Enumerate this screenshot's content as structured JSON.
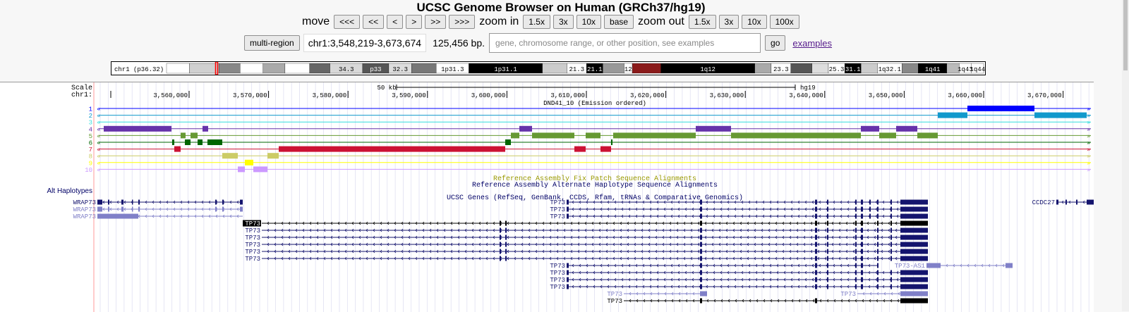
{
  "title": "UCSC Genome Browser on Human (GRCh37/hg19)",
  "nav": {
    "move_label": "move",
    "move_buttons": [
      "<<<",
      "<<",
      "<",
      ">",
      ">>",
      ">>>"
    ],
    "zoom_in_label": "zoom in",
    "zoom_in_buttons": [
      "1.5x",
      "3x",
      "10x",
      "base"
    ],
    "zoom_out_label": "zoom out",
    "zoom_out_buttons": [
      "1.5x",
      "3x",
      "10x",
      "100x"
    ]
  },
  "position_bar": {
    "multi_region_label": "multi-region",
    "position": "chr1:3,548,219-3,673,674",
    "size": "125,456 bp.",
    "search_placeholder": "gene, chromosome range, or other position, see examples",
    "go_label": "go",
    "examples_label": "examples"
  },
  "ideogram": {
    "label": "chr1 (p36.32)",
    "bands": [
      {
        "s": 0,
        "e": 0.028,
        "c": "#ffffff",
        "t": ""
      },
      {
        "s": 0.028,
        "e": 0.064,
        "c": "#d0d0d0",
        "t": ""
      },
      {
        "s": 0.064,
        "e": 0.09,
        "c": "#888888",
        "t": ""
      },
      {
        "s": 0.09,
        "e": 0.118,
        "c": "#ffffff",
        "t": ""
      },
      {
        "s": 0.118,
        "e": 0.145,
        "c": "#aaaaaa",
        "t": ""
      },
      {
        "s": 0.145,
        "e": 0.175,
        "c": "#ffffff",
        "t": ""
      },
      {
        "s": 0.175,
        "e": 0.2,
        "c": "#666666",
        "t": ""
      },
      {
        "s": 0.2,
        "e": 0.24,
        "c": "#d8d8d8",
        "t": "34.3"
      },
      {
        "s": 0.24,
        "e": 0.272,
        "c": "#555555",
        "t": "p33"
      },
      {
        "s": 0.272,
        "e": 0.3,
        "c": "#dddddd",
        "t": "32.3"
      },
      {
        "s": 0.3,
        "e": 0.33,
        "c": "#777777",
        "t": ""
      },
      {
        "s": 0.33,
        "e": 0.37,
        "c": "#ffffff",
        "t": "1p31.3"
      },
      {
        "s": 0.37,
        "e": 0.46,
        "c": "#000000",
        "t": "1p31.1"
      },
      {
        "s": 0.46,
        "e": 0.49,
        "c": "#cccccc",
        "t": ""
      },
      {
        "s": 0.49,
        "e": 0.514,
        "c": "#ffffff",
        "t": "21.3"
      },
      {
        "s": 0.514,
        "e": 0.534,
        "c": "#000000",
        "t": "21.1"
      },
      {
        "s": 0.534,
        "e": 0.56,
        "c": "#999999",
        "t": ""
      },
      {
        "s": 0.56,
        "e": 0.57,
        "c": "#ffffff",
        "t": "12"
      },
      {
        "s": 0.57,
        "e": 0.605,
        "c": "#8a1a1a",
        "t": ""
      },
      {
        "s": 0.605,
        "e": 0.72,
        "c": "#000000",
        "t": "1q12"
      },
      {
        "s": 0.72,
        "e": 0.74,
        "c": "#aaaaaa",
        "t": ""
      },
      {
        "s": 0.74,
        "e": 0.764,
        "c": "#ffffff",
        "t": "23.3"
      },
      {
        "s": 0.764,
        "e": 0.79,
        "c": "#555555",
        "t": ""
      },
      {
        "s": 0.79,
        "e": 0.81,
        "c": "#dddddd",
        "t": ""
      },
      {
        "s": 0.81,
        "e": 0.83,
        "c": "#ffffff",
        "t": "25.3"
      },
      {
        "s": 0.83,
        "e": 0.85,
        "c": "#000000",
        "t": "31.1"
      },
      {
        "s": 0.85,
        "e": 0.87,
        "c": "#cccccc",
        "t": ""
      },
      {
        "s": 0.87,
        "e": 0.9,
        "c": "#ffffff",
        "t": "1q32.1"
      },
      {
        "s": 0.9,
        "e": 0.92,
        "c": "#888888",
        "t": ""
      },
      {
        "s": 0.92,
        "e": 0.955,
        "c": "#000000",
        "t": "1q41"
      },
      {
        "s": 0.955,
        "e": 0.97,
        "c": "#bbbbbb",
        "t": ""
      },
      {
        "s": 0.97,
        "e": 0.985,
        "c": "#ffffff",
        "t": "1q43"
      },
      {
        "s": 0.985,
        "e": 1,
        "c": "#ffffff",
        "t": "1q44"
      }
    ]
  },
  "scale": {
    "scale_label": "Scale",
    "chr_label": "chr1:",
    "bar_label": "50 kb",
    "assembly": "hg19",
    "ticks": [
      "3,560,000",
      "3,570,000",
      "3,580,000",
      "3,590,000",
      "3,600,000",
      "3,610,000",
      "3,620,000",
      "3,630,000",
      "3,640,000",
      "3,650,000",
      "3,660,000",
      "3,670,000"
    ]
  },
  "chromhmm": {
    "title": "DND41_10 (Emission ordered)",
    "rows": [
      {
        "label": "1",
        "color": "#0000ff",
        "blocks": [
          [
            1371,
            1466,
            "#0000ff"
          ]
        ]
      },
      {
        "label": "2",
        "color": "#1199cc",
        "blocks": [
          [
            1329,
            1371,
            "#1199cc"
          ],
          [
            1466,
            1540,
            "#1199cc"
          ]
        ]
      },
      {
        "label": "3",
        "color": "#33dddd",
        "blocks": []
      },
      {
        "label": "4",
        "color": "#6633aa",
        "blocks": [
          [
            147,
            243,
            "#6633aa"
          ],
          [
            287,
            295,
            "#6633aa"
          ],
          [
            736,
            754,
            "#6633aa"
          ],
          [
            986,
            1036,
            "#6633aa"
          ],
          [
            1220,
            1246,
            "#6633aa"
          ],
          [
            1270,
            1300,
            "#6633aa"
          ]
        ]
      },
      {
        "label": "5",
        "color": "#669933",
        "blocks": [
          [
            256,
            263,
            "#669933"
          ],
          [
            270,
            280,
            "#669933"
          ],
          [
            724,
            736,
            "#669933"
          ],
          [
            754,
            814,
            "#669933"
          ],
          [
            830,
            851,
            "#669933"
          ],
          [
            869,
            986,
            "#669933"
          ],
          [
            1036,
            1220,
            "#669933"
          ],
          [
            1246,
            1270,
            "#669933"
          ],
          [
            1300,
            1329,
            "#669933"
          ]
        ]
      },
      {
        "label": "6",
        "color": "#006600",
        "blocks": [
          [
            244,
            247,
            "#006600"
          ],
          [
            262,
            270,
            "#006600"
          ],
          [
            280,
            287,
            "#006600"
          ],
          [
            294,
            315,
            "#006600"
          ],
          [
            716,
            724,
            "#006600"
          ],
          [
            866,
            868,
            "#006600"
          ]
        ]
      },
      {
        "label": "7",
        "color": "#cc1133",
        "blocks": [
          [
            247,
            256,
            "#cc1133"
          ],
          [
            395,
            716,
            "#cc1133"
          ],
          [
            814,
            830,
            "#cc1133"
          ],
          [
            851,
            866,
            "#cc1133"
          ]
        ]
      },
      {
        "label": "8",
        "color": "#cccc66",
        "blocks": [
          [
            315,
            337,
            "#cccc66"
          ],
          [
            379,
            395,
            "#cccc66"
          ]
        ]
      },
      {
        "label": "9",
        "color": "#ffff00",
        "blocks": [
          [
            347,
            359,
            "#ffff00"
          ]
        ]
      },
      {
        "label": "10",
        "color": "#cc99ff",
        "blocks": [
          [
            337,
            347,
            "#cc99ff"
          ],
          [
            359,
            379,
            "#cc99ff"
          ]
        ]
      }
    ]
  },
  "fix_patch_label": "Reference Assembly Fix Patch Sequence Alignments",
  "alt_label": "Reference Assembly Alternate Haplotype Sequence Alignments",
  "alt_haplotypes_label": "Alt Haplotypes",
  "ucsc_genes_title": "UCSC Genes (RefSeq, GenBank, CCDS, Rfam, tRNAs & Comparative Genomics)",
  "genes": [
    {
      "label": "WRAP73",
      "row": 0,
      "side": "left",
      "start": 138,
      "end": 344,
      "color": "#14146e",
      "exons": [
        [
          138,
          145
        ],
        [
          153,
          155
        ],
        [
          172,
          175
        ],
        [
          187,
          188
        ],
        [
          196,
          198
        ],
        [
          305,
          307
        ],
        [
          315,
          317
        ],
        [
          340,
          344
        ]
      ]
    },
    {
      "label": "WRAP73",
      "row": 1,
      "side": "left",
      "start": 138,
      "end": 344,
      "color": "#8080c8",
      "exons": [
        [
          138,
          145
        ],
        [
          153,
          155
        ],
        [
          172,
          175
        ],
        [
          187,
          188
        ],
        [
          196,
          198
        ],
        [
          305,
          307
        ],
        [
          315,
          317
        ],
        [
          340,
          344
        ]
      ]
    },
    {
      "label": "WRAP73",
      "row": 2,
      "side": "left",
      "start": 138,
      "end": 344,
      "color": "#8080c8",
      "exons": [
        [
          138,
          196
        ]
      ]
    },
    {
      "label": "TP73",
      "row": 0,
      "side": "left",
      "start": 803,
      "end": 1315,
      "color": "#14146e",
      "exons": [
        [
          803,
          806
        ],
        [
          992,
          995
        ],
        [
          1155,
          1158
        ],
        [
          1172,
          1174
        ],
        [
          1212,
          1214
        ],
        [
          1220,
          1223
        ],
        [
          1232,
          1234
        ],
        [
          1243,
          1245
        ],
        [
          1262,
          1264
        ],
        [
          1276,
          1315
        ]
      ]
    },
    {
      "label": "TP73",
      "row": 1,
      "side": "left",
      "start": 803,
      "end": 1315,
      "color": "#14146e",
      "exons": [
        [
          803,
          806
        ],
        [
          992,
          995
        ],
        [
          1155,
          1158
        ],
        [
          1172,
          1174
        ],
        [
          1212,
          1214
        ],
        [
          1220,
          1223
        ],
        [
          1232,
          1234
        ],
        [
          1243,
          1245
        ],
        [
          1262,
          1264
        ],
        [
          1276,
          1315
        ]
      ]
    },
    {
      "label": "TP73",
      "row": 2,
      "side": "left",
      "start": 803,
      "end": 1315,
      "color": "#14146e",
      "exons": [
        [
          803,
          806
        ],
        [
          992,
          995
        ],
        [
          1155,
          1158
        ],
        [
          1172,
          1174
        ],
        [
          1212,
          1214
        ],
        [
          1220,
          1223
        ],
        [
          1232,
          1234
        ],
        [
          1243,
          1245
        ],
        [
          1262,
          1264
        ],
        [
          1276,
          1315
        ]
      ]
    },
    {
      "label": "CCDC27",
      "row": 0,
      "side": "left",
      "start": 1497,
      "end": 1550,
      "color": "#14146e",
      "exons": [
        [
          1497,
          1500
        ],
        [
          1510,
          1512
        ],
        [
          1525,
          1527
        ],
        [
          1540,
          1550
        ]
      ]
    },
    {
      "label": "TP73",
      "row": 3,
      "side": "left",
      "start": 371,
      "end": 1315,
      "color": "#000000",
      "hl": true,
      "exons": [
        [
          708,
          710
        ],
        [
          716,
          718
        ],
        [
          992,
          995
        ],
        [
          1155,
          1158
        ],
        [
          1172,
          1174
        ],
        [
          1212,
          1214
        ],
        [
          1220,
          1223
        ],
        [
          1243,
          1245
        ],
        [
          1262,
          1264
        ],
        [
          1276,
          1315
        ]
      ]
    },
    {
      "label": "TP73",
      "row": 4,
      "side": "left",
      "start": 371,
      "end": 1315,
      "color": "#14146e",
      "exons": [
        [
          708,
          710
        ],
        [
          716,
          718
        ],
        [
          992,
          995
        ],
        [
          1155,
          1158
        ],
        [
          1172,
          1174
        ],
        [
          1212,
          1214
        ],
        [
          1220,
          1223
        ],
        [
          1243,
          1245
        ],
        [
          1262,
          1264
        ],
        [
          1276,
          1315
        ]
      ]
    },
    {
      "label": "TP73",
      "row": 5,
      "side": "left",
      "start": 371,
      "end": 1315,
      "color": "#14146e",
      "exons": [
        [
          708,
          710
        ],
        [
          716,
          718
        ],
        [
          992,
          995
        ],
        [
          1155,
          1158
        ],
        [
          1172,
          1174
        ],
        [
          1212,
          1214
        ],
        [
          1220,
          1223
        ],
        [
          1243,
          1245
        ],
        [
          1262,
          1264
        ],
        [
          1276,
          1315
        ]
      ]
    },
    {
      "label": "TP73",
      "row": 6,
      "side": "left",
      "start": 371,
      "end": 1315,
      "color": "#14146e",
      "exons": [
        [
          708,
          710
        ],
        [
          716,
          718
        ],
        [
          992,
          995
        ],
        [
          1155,
          1158
        ],
        [
          1172,
          1174
        ],
        [
          1212,
          1214
        ],
        [
          1220,
          1223
        ],
        [
          1243,
          1245
        ],
        [
          1262,
          1264
        ],
        [
          1276,
          1315
        ]
      ]
    },
    {
      "label": "TP73",
      "row": 7,
      "side": "left",
      "start": 371,
      "end": 1315,
      "color": "#14146e",
      "exons": [
        [
          708,
          710
        ],
        [
          716,
          718
        ],
        [
          992,
          995
        ],
        [
          1155,
          1158
        ],
        [
          1172,
          1174
        ],
        [
          1212,
          1214
        ],
        [
          1220,
          1223
        ],
        [
          1243,
          1245
        ],
        [
          1262,
          1264
        ],
        [
          1276,
          1315
        ]
      ]
    },
    {
      "label": "TP73",
      "row": 8,
      "side": "left",
      "start": 371,
      "end": 1315,
      "color": "#14146e",
      "exons": [
        [
          708,
          710
        ],
        [
          716,
          718
        ],
        [
          992,
          995
        ],
        [
          1155,
          1158
        ],
        [
          1172,
          1174
        ],
        [
          1212,
          1214
        ],
        [
          1220,
          1223
        ],
        [
          1243,
          1245
        ],
        [
          1262,
          1264
        ],
        [
          1276,
          1315
        ]
      ]
    },
    {
      "label": "TP73",
      "row": 9,
      "side": "left",
      "start": 803,
      "end": 1245,
      "color": "#14146e",
      "exons": [
        [
          803,
          806
        ],
        [
          992,
          995
        ],
        [
          1155,
          1158
        ],
        [
          1172,
          1174
        ],
        [
          1212,
          1214
        ],
        [
          1220,
          1223
        ],
        [
          1243,
          1245
        ]
      ]
    },
    {
      "label": "TP73-AS1",
      "row": 9,
      "side": "left",
      "start": 1313,
      "end": 1435,
      "color": "#8080c8",
      "exons": [
        [
          1313,
          1333
        ],
        [
          1425,
          1435
        ]
      ]
    },
    {
      "label": "TP73",
      "row": 10,
      "side": "left",
      "start": 803,
      "end": 1315,
      "color": "#14146e",
      "exons": [
        [
          803,
          806
        ],
        [
          992,
          995
        ],
        [
          1155,
          1158
        ],
        [
          1172,
          1174
        ],
        [
          1212,
          1214
        ],
        [
          1220,
          1223
        ],
        [
          1243,
          1245
        ],
        [
          1262,
          1264
        ],
        [
          1276,
          1315
        ]
      ]
    },
    {
      "label": "TP73",
      "row": 11,
      "side": "left",
      "start": 803,
      "end": 1315,
      "color": "#14146e",
      "exons": [
        [
          803,
          806
        ],
        [
          992,
          995
        ],
        [
          1155,
          1158
        ],
        [
          1172,
          1174
        ],
        [
          1212,
          1214
        ],
        [
          1220,
          1223
        ],
        [
          1243,
          1245
        ],
        [
          1262,
          1264
        ],
        [
          1276,
          1315
        ]
      ]
    },
    {
      "label": "TP73",
      "row": 12,
      "side": "left",
      "start": 803,
      "end": 1315,
      "color": "#14146e",
      "exons": [
        [
          803,
          806
        ],
        [
          992,
          995
        ],
        [
          1155,
          1158
        ],
        [
          1172,
          1174
        ],
        [
          1212,
          1214
        ],
        [
          1220,
          1223
        ],
        [
          1243,
          1245
        ],
        [
          1262,
          1264
        ],
        [
          1276,
          1315
        ]
      ]
    },
    {
      "label": "TP73",
      "row": 13,
      "side": "left",
      "start": 884,
      "end": 1002,
      "color": "#8080c8",
      "exons": [
        [
          992,
          1002
        ]
      ]
    },
    {
      "label": "TP73",
      "row": 13,
      "side": "left",
      "start": 1215,
      "end": 1315,
      "color": "#8080c8",
      "exons": [
        [
          1276,
          1315
        ]
      ]
    },
    {
      "label": "TP73",
      "row": 14,
      "side": "left",
      "start": 884,
      "end": 1315,
      "color": "#000000",
      "exons": [
        [
          992,
          995
        ],
        [
          1155,
          1158
        ],
        [
          1276,
          1315
        ]
      ]
    }
  ],
  "side_controls": [
    "1",
    "2"
  ]
}
